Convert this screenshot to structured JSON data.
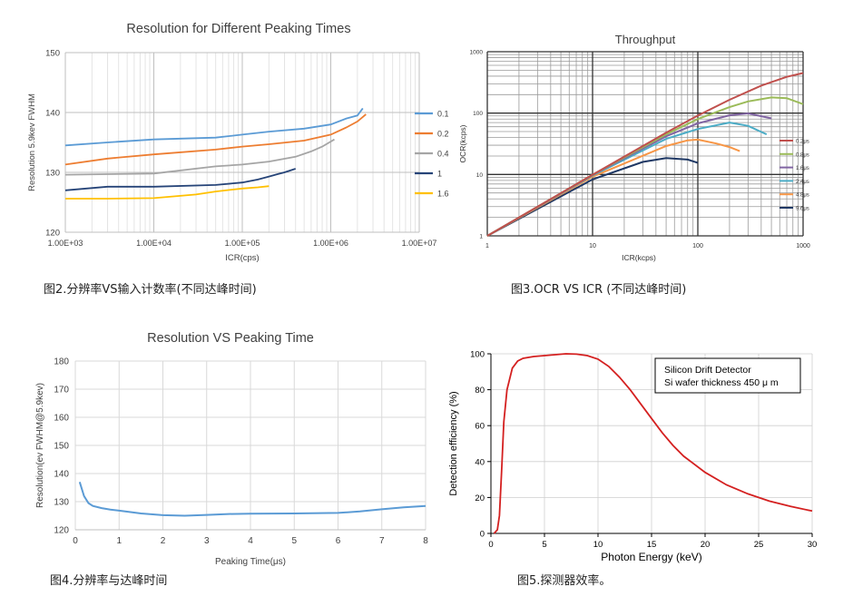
{
  "captions": {
    "c1": "图2.分辨率VS输入计数率(不同达峰时间)",
    "c2": "图3.OCR VS ICR (不同达峰时间)",
    "c3": "图4.分辨率与达峰时间",
    "c4": "图5.探测器效率。"
  },
  "chart_data": [
    {
      "id": "resolution_vs_icr",
      "type": "line",
      "title": "Resolution for Different Peaking Times",
      "xlabel": "ICR(cps)",
      "ylabel": "Resolution 5.9kev FWHM",
      "xscale": "log",
      "xlim": [
        1000,
        10000000
      ],
      "ylim": [
        120,
        150
      ],
      "xticks": [
        1000,
        10000,
        100000,
        1000000,
        10000000
      ],
      "xtick_labels": [
        "1.00E+03",
        "1.00E+04",
        "1.00E+05",
        "1.00E+06",
        "1.00E+07"
      ],
      "yticks": [
        120,
        130,
        140,
        150
      ],
      "legend_position": "right",
      "series": [
        {
          "name": "0.1",
          "color": "#5b9bd5",
          "x": [
            1000,
            3000,
            10000,
            50000,
            100000,
            200000,
            500000,
            1000000,
            1500000,
            2000000,
            2300000
          ],
          "y": [
            134.5,
            135.0,
            135.5,
            135.8,
            136.3,
            136.8,
            137.3,
            138.0,
            139.0,
            139.5,
            140.7
          ]
        },
        {
          "name": "0.2",
          "color": "#ed7d31",
          "x": [
            1000,
            3000,
            10000,
            50000,
            100000,
            200000,
            500000,
            1000000,
            1500000,
            2000000,
            2500000
          ],
          "y": [
            131.3,
            132.3,
            133.0,
            133.8,
            134.3,
            134.7,
            135.3,
            136.3,
            137.5,
            138.5,
            139.7
          ]
        },
        {
          "name": "0.4",
          "color": "#a5a5a5",
          "x": [
            1000,
            3000,
            10000,
            50000,
            100000,
            200000,
            400000,
            600000,
            800000,
            1100000
          ],
          "y": [
            129.6,
            129.7,
            129.8,
            131.0,
            131.3,
            131.8,
            132.6,
            133.5,
            134.3,
            135.5
          ]
        },
        {
          "name": "1",
          "color": "#264478",
          "x": [
            1000,
            3000,
            10000,
            50000,
            100000,
            150000,
            200000,
            250000,
            300000,
            400000
          ],
          "y": [
            127.0,
            127.6,
            127.6,
            127.9,
            128.3,
            128.8,
            129.3,
            129.7,
            130.0,
            130.6
          ]
        },
        {
          "name": "1.6",
          "color": "#ffc000",
          "x": [
            1000,
            3000,
            10000,
            30000,
            50000,
            100000,
            150000,
            200000
          ],
          "y": [
            125.6,
            125.6,
            125.7,
            126.3,
            126.8,
            127.3,
            127.5,
            127.7
          ]
        }
      ]
    },
    {
      "id": "throughput",
      "type": "line",
      "title": "Throughput",
      "xlabel": "ICR(kcps)",
      "ylabel": "OCR(kcps)",
      "xscale": "log",
      "yscale": "log",
      "xlim": [
        1,
        1000
      ],
      "ylim": [
        1,
        1000
      ],
      "xticks": [
        1,
        10,
        100,
        1000
      ],
      "yticks": [
        1,
        10,
        100,
        1000
      ],
      "legend_position": "right",
      "series": [
        {
          "name": "0.2μs",
          "color": "#c0504d",
          "x": [
            1,
            10,
            50,
            100,
            200,
            400,
            700,
            1000
          ],
          "y": [
            1,
            9.9,
            48,
            91,
            165,
            280,
            390,
            450
          ]
        },
        {
          "name": "0.8μs",
          "color": "#9bbb59",
          "x": [
            1,
            10,
            50,
            100,
            200,
            300,
            500,
            700,
            1000
          ],
          "y": [
            1,
            9.9,
            45,
            80,
            125,
            155,
            180,
            175,
            140
          ]
        },
        {
          "name": "1.6μs",
          "color": "#8064a2",
          "x": [
            1,
            10,
            50,
            100,
            200,
            300,
            500
          ],
          "y": [
            1,
            9.8,
            42,
            68,
            92,
            99,
            82
          ]
        },
        {
          "name": "2.4μs",
          "color": "#4bacc6",
          "x": [
            1,
            10,
            50,
            100,
            200,
            300,
            450
          ],
          "y": [
            1,
            9.6,
            38,
            55,
            70,
            62,
            45
          ]
        },
        {
          "name": "4.8μs",
          "color": "#f79646",
          "x": [
            1,
            10,
            50,
            80,
            100,
            150,
            200,
            250
          ],
          "y": [
            1,
            9.2,
            29,
            36,
            37,
            32,
            28,
            24
          ]
        },
        {
          "name": "9.6μs",
          "color": "#1f3864",
          "x": [
            1,
            10,
            30,
            50,
            80,
            100
          ],
          "y": [
            1,
            8.3,
            16,
            18.5,
            17.5,
            15.5
          ]
        }
      ]
    },
    {
      "id": "resolution_vs_peaking",
      "type": "line",
      "title": "Resolution VS Peaking Time",
      "xlabel": "Peaking Time(μs)",
      "ylabel": "Resolution(ev FWHM@5.9kev)",
      "xlim": [
        0,
        8
      ],
      "ylim": [
        120,
        180
      ],
      "xticks": [
        0,
        1,
        2,
        3,
        4,
        5,
        6,
        7,
        8
      ],
      "yticks": [
        120,
        130,
        140,
        150,
        160,
        170,
        180
      ],
      "series": [
        {
          "name": "Resolution",
          "color": "#5b9bd5",
          "x": [
            0.1,
            0.2,
            0.3,
            0.4,
            0.6,
            0.8,
            1.0,
            1.5,
            2.0,
            2.5,
            3.0,
            3.5,
            4.0,
            5.0,
            6.0,
            6.5,
            7.0,
            7.5,
            8.0
          ],
          "y": [
            137,
            132,
            129.5,
            128.5,
            127.7,
            127.2,
            126.8,
            125.8,
            125.2,
            125.0,
            125.3,
            125.6,
            125.7,
            125.8,
            126.0,
            126.5,
            127.3,
            128.0,
            128.5
          ]
        }
      ]
    },
    {
      "id": "detection_efficiency",
      "type": "line",
      "title": "",
      "xlabel": "Photon Energy (keV)",
      "ylabel": "Detection efficiency (%)",
      "xlim": [
        0,
        30
      ],
      "ylim": [
        0,
        100
      ],
      "xticks": [
        0,
        5,
        10,
        15,
        20,
        25,
        30
      ],
      "yticks": [
        0,
        20,
        40,
        60,
        80,
        100
      ],
      "annotation": [
        "Silicon Drift Detector",
        "Si wafer thickness 450 μ m"
      ],
      "series": [
        {
          "name": "Silicon Drift Detector",
          "color": "#d42020",
          "x": [
            0.3,
            0.6,
            0.8,
            1.0,
            1.2,
            1.5,
            2.0,
            2.5,
            3,
            4,
            5,
            6,
            7,
            8,
            9,
            10,
            11,
            12,
            13,
            14,
            15,
            16,
            17,
            18,
            20,
            22,
            24,
            26,
            28,
            30
          ],
          "y": [
            0,
            2,
            10,
            35,
            62,
            80,
            92,
            96,
            97.5,
            98.5,
            99,
            99.5,
            100,
            99.8,
            99,
            97,
            93,
            87,
            80,
            72,
            64,
            56,
            49,
            43,
            34,
            27,
            22,
            18,
            15,
            12.5
          ]
        }
      ]
    }
  ]
}
